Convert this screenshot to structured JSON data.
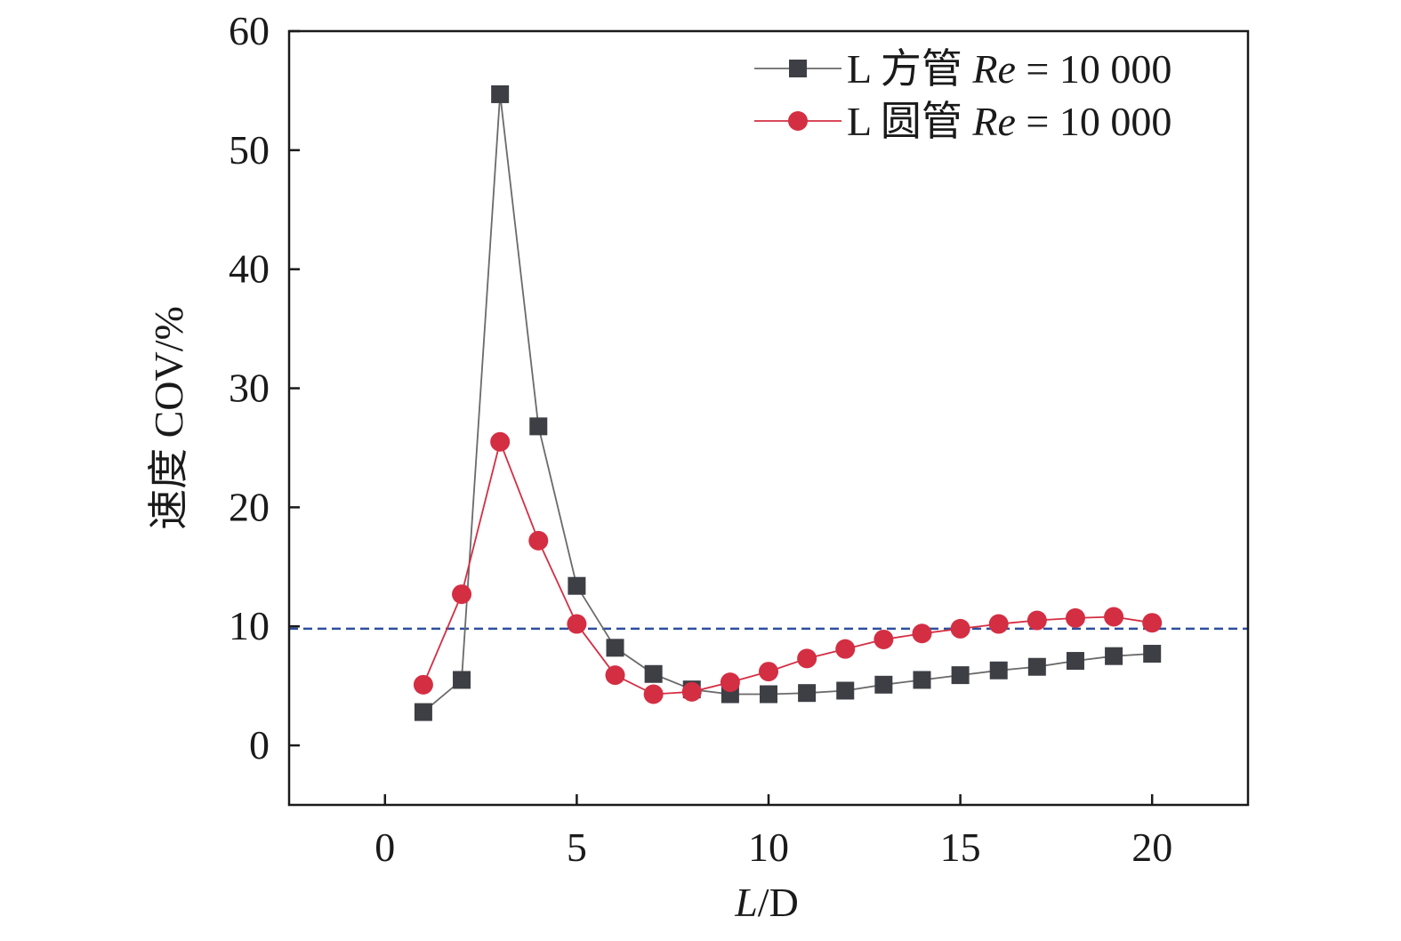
{
  "chart_data": {
    "type": "line",
    "xlabel_italic": "L",
    "xlabel_rest": "/D",
    "ylabel": "速度 COV/%",
    "xlim": [
      -2.5,
      22.5
    ],
    "ylim": [
      -5,
      60
    ],
    "xticks": [
      0,
      5,
      10,
      15,
      20
    ],
    "yticks": [
      0,
      10,
      20,
      30,
      40,
      50,
      60
    ],
    "grid": false,
    "legend_position": "top-right",
    "reference_line": {
      "y": 9.8,
      "style": "dashed",
      "color": "#2e4f9e"
    },
    "x": [
      1,
      2,
      3,
      4,
      5,
      6,
      7,
      8,
      9,
      10,
      11,
      12,
      13,
      14,
      15,
      16,
      17,
      18,
      19,
      20
    ],
    "series": [
      {
        "name_prefix": "L 方管 ",
        "name_italic": "Re",
        "name_suffix": " = 10 000",
        "marker": "square",
        "color": "#3d3f45",
        "line_color": "#6a6a6a",
        "values": [
          2.8,
          5.5,
          54.7,
          26.8,
          13.4,
          8.2,
          6.0,
          4.7,
          4.3,
          4.3,
          4.4,
          4.6,
          5.1,
          5.5,
          5.9,
          6.3,
          6.6,
          7.1,
          7.5,
          7.7
        ]
      },
      {
        "name_prefix": "L 圆管 ",
        "name_italic": "Re",
        "name_suffix": " = 10 000",
        "marker": "circle",
        "color": "#d42e43",
        "line_color": "#d42e43",
        "values": [
          5.1,
          12.7,
          25.5,
          17.2,
          10.2,
          5.9,
          4.3,
          4.5,
          5.3,
          6.2,
          7.3,
          8.1,
          8.9,
          9.4,
          9.8,
          10.2,
          10.5,
          10.7,
          10.8,
          10.3
        ]
      }
    ]
  }
}
